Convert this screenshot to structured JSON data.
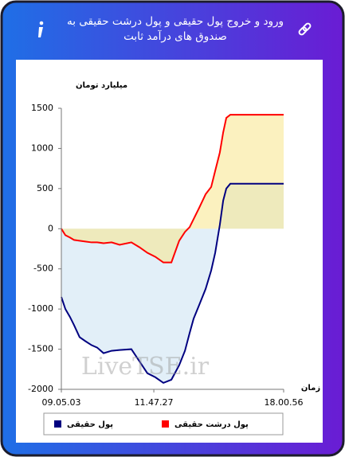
{
  "header": {
    "title": "ورود و خروج پول حقیقی و پول درشت حقیقی به صندوق های درآمد ثابت"
  },
  "chart_data": {
    "type": "line",
    "y_label": "میلیارد تومان",
    "x_label": "زمان",
    "watermark": "LiveTSE.ir",
    "xlim": [
      0,
      100
    ],
    "xticks": [
      {
        "value": 0,
        "label": "09.05.03"
      },
      {
        "value": 41.6,
        "label": "11.47.27"
      },
      {
        "value": 100,
        "label": "18.00.56"
      }
    ],
    "ylim": [
      -2000,
      1500
    ],
    "yticks": [
      1500,
      1000,
      500,
      0,
      -500,
      -1000,
      -1500,
      -2000
    ],
    "grid": false,
    "x": [
      0,
      1.8,
      3.9,
      5.7,
      8.2,
      10.8,
      13.6,
      16.1,
      19.0,
      22.6,
      26.2,
      31.5,
      35.1,
      38.7,
      42.3,
      45.9,
      49.5,
      53.0,
      55.6,
      57.7,
      59.5,
      62.0,
      64.9,
      67.4,
      69.2,
      71.3,
      72.8,
      74.2,
      76.0,
      100
    ],
    "series": [
      {
        "name": "پول حقیقی",
        "color": "#000080",
        "fill": "#e2eff8",
        "values": [
          -850,
          -1000,
          -1100,
          -1200,
          -1350,
          -1400,
          -1450,
          -1480,
          -1550,
          -1520,
          -1510,
          -1500,
          -1650,
          -1800,
          -1850,
          -1920,
          -1880,
          -1700,
          -1520,
          -1300,
          -1120,
          -950,
          -750,
          -520,
          -300,
          50,
          350,
          500,
          560,
          560
        ]
      },
      {
        "name": "پول درشت حقیقی",
        "color": "#ff0000",
        "fill": "#f8e58a",
        "values": [
          0,
          -80,
          -110,
          -140,
          -150,
          -160,
          -170,
          -170,
          -180,
          -170,
          -200,
          -170,
          -230,
          -300,
          -350,
          -420,
          -420,
          -150,
          -40,
          20,
          120,
          260,
          430,
          520,
          720,
          950,
          1200,
          1380,
          1420,
          1420
        ]
      }
    ]
  }
}
